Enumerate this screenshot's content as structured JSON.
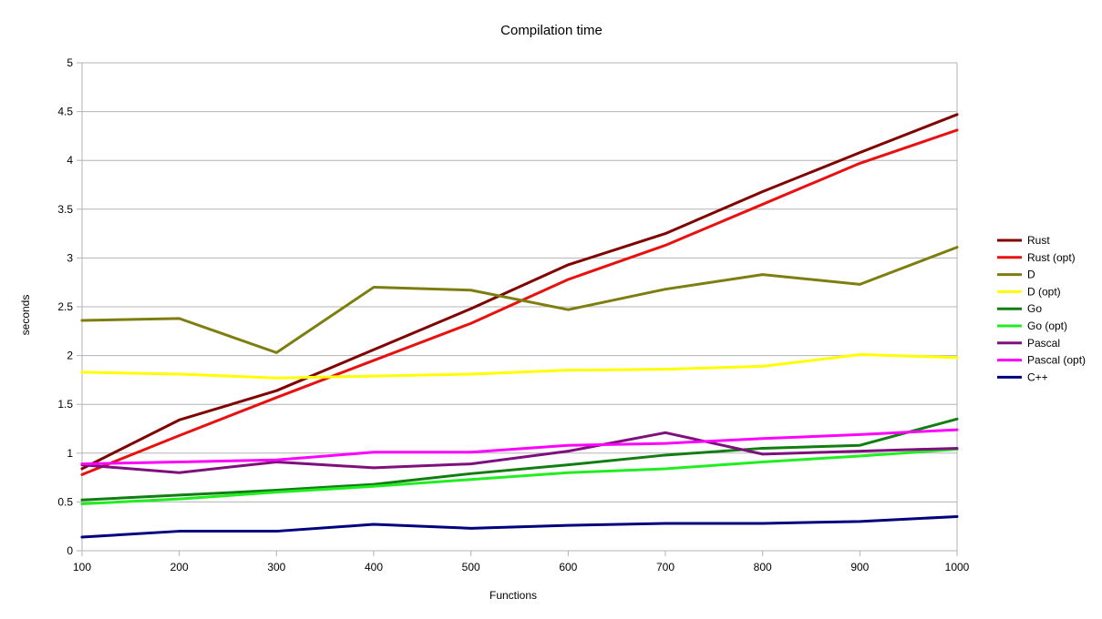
{
  "chart_data": {
    "type": "line",
    "title": "Compilation time",
    "xlabel": "Functions",
    "ylabel": "seconds",
    "x": [
      100,
      200,
      300,
      400,
      500,
      600,
      700,
      800,
      900,
      1000
    ],
    "xlim": [
      100,
      1000
    ],
    "ylim": [
      0,
      5
    ],
    "yticks": [
      0,
      0.5,
      1,
      1.5,
      2,
      2.5,
      3,
      3.5,
      4,
      4.5,
      5
    ],
    "ytick_labels": [
      "0",
      "0.5",
      "1",
      "1.5",
      "2",
      "2.5",
      "3",
      "3.5",
      "4",
      "4.5",
      "5"
    ],
    "xtick_labels": [
      "100",
      "200",
      "300",
      "400",
      "500",
      "600",
      "700",
      "800",
      "900",
      "1000"
    ],
    "grid": true,
    "legend_position": "right",
    "series": [
      {
        "name": "Rust",
        "color": "#800000",
        "values": [
          0.84,
          1.34,
          1.64,
          2.06,
          2.48,
          2.93,
          3.25,
          3.68,
          4.08,
          4.47
        ]
      },
      {
        "name": "Rust (opt)",
        "color": "#e8110f",
        "values": [
          0.78,
          1.18,
          1.57,
          1.95,
          2.33,
          2.78,
          3.13,
          3.55,
          3.97,
          4.31
        ]
      },
      {
        "name": "D",
        "color": "#7e7e10",
        "values": [
          2.36,
          2.38,
          2.03,
          2.7,
          2.67,
          2.47,
          2.68,
          2.83,
          2.73,
          3.11
        ]
      },
      {
        "name": "D (opt)",
        "color": "#ffff00",
        "values": [
          1.83,
          1.81,
          1.77,
          1.79,
          1.81,
          1.85,
          1.86,
          1.89,
          2.01,
          1.98
        ]
      },
      {
        "name": "Go",
        "color": "#107e10",
        "values": [
          0.52,
          0.57,
          0.62,
          0.68,
          0.79,
          0.88,
          0.98,
          1.05,
          1.08,
          1.35
        ]
      },
      {
        "name": "Go (opt)",
        "color": "#20ee20",
        "values": [
          0.48,
          0.53,
          0.6,
          0.66,
          0.73,
          0.8,
          0.84,
          0.91,
          0.97,
          1.04
        ]
      },
      {
        "name": "Pascal",
        "color": "#7e107e",
        "values": [
          0.88,
          0.8,
          0.91,
          0.85,
          0.89,
          1.02,
          1.21,
          0.99,
          1.02,
          1.05
        ]
      },
      {
        "name": "Pascal (opt)",
        "color": "#ff00ff",
        "values": [
          0.89,
          0.91,
          0.93,
          1.01,
          1.01,
          1.08,
          1.1,
          1.15,
          1.19,
          1.24
        ]
      },
      {
        "name": "C++",
        "color": "#00007e",
        "values": [
          0.14,
          0.2,
          0.2,
          0.27,
          0.23,
          0.26,
          0.28,
          0.28,
          0.3,
          0.35
        ]
      }
    ]
  }
}
